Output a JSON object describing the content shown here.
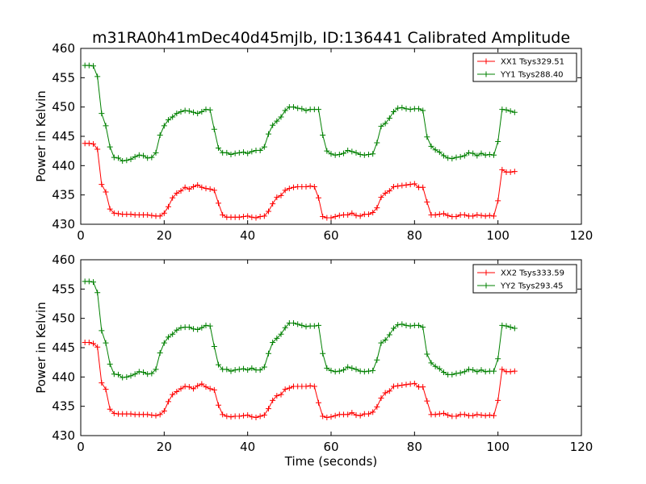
{
  "figure": {
    "title": "m31RA0h41mDec40d45mjlb, ID:136441 Calibrated Amplitude"
  },
  "chart_data": [
    {
      "type": "line",
      "title": "m31RA0h41mDec40d45mjlb, ID:136441 Calibrated Amplitude",
      "xlabel": "",
      "ylabel": "Power in Kelvin",
      "xlim": [
        0,
        120
      ],
      "ylim": [
        430,
        460
      ],
      "xticks": [
        0,
        20,
        40,
        60,
        80,
        100,
        120
      ],
      "yticks": [
        430,
        435,
        440,
        445,
        450,
        455,
        460
      ],
      "grid": false,
      "legend_position": "top-right",
      "marker": "+",
      "series": [
        {
          "name": "XX1 Tsys329.51",
          "color": "#ff0000",
          "x": [
            1,
            2,
            3,
            4,
            5,
            6,
            7,
            8,
            9,
            10,
            11,
            12,
            13,
            14,
            15,
            16,
            17,
            18,
            19,
            20,
            21,
            22,
            23,
            24,
            25,
            26,
            27,
            28,
            29,
            30,
            31,
            32,
            33,
            34,
            35,
            36,
            37,
            38,
            39,
            40,
            41,
            42,
            43,
            44,
            45,
            46,
            47,
            48,
            49,
            50,
            51,
            52,
            53,
            54,
            55,
            56,
            57,
            58,
            59,
            60,
            61,
            62,
            63,
            64,
            65,
            66,
            67,
            68,
            69,
            70,
            71,
            72,
            73,
            74,
            75,
            76,
            77,
            78,
            79,
            80,
            81,
            82,
            83,
            84,
            85,
            86,
            87,
            88,
            89,
            90,
            91,
            92,
            93,
            94,
            95,
            96,
            97,
            98,
            99,
            100,
            101,
            102,
            103,
            104
          ],
          "y": [
            443.8,
            443.8,
            443.7,
            442.8,
            436.8,
            435.5,
            432.6,
            431.9,
            431.8,
            431.7,
            431.7,
            431.7,
            431.6,
            431.6,
            431.6,
            431.6,
            431.5,
            431.4,
            431.4,
            431.9,
            433.0,
            434.5,
            435.3,
            435.7,
            436.3,
            436.0,
            436.4,
            436.7,
            436.3,
            436.1,
            436.0,
            435.8,
            433.6,
            431.6,
            431.2,
            431.2,
            431.2,
            431.2,
            431.3,
            431.4,
            431.2,
            431.1,
            431.3,
            431.4,
            432.2,
            433.5,
            434.6,
            434.9,
            435.8,
            436.1,
            436.3,
            436.4,
            436.4,
            436.4,
            436.5,
            436.4,
            434.5,
            431.3,
            431.1,
            431.1,
            431.3,
            431.5,
            431.6,
            431.6,
            431.9,
            431.5,
            431.4,
            431.7,
            431.7,
            432.0,
            432.8,
            434.6,
            435.3,
            435.7,
            436.4,
            436.5,
            436.6,
            436.7,
            436.8,
            436.9,
            436.3,
            436.3,
            433.8,
            431.6,
            431.6,
            431.7,
            431.8,
            431.5,
            431.3,
            431.3,
            431.6,
            431.6,
            431.4,
            431.4,
            431.6,
            431.5,
            431.4,
            431.5,
            431.4,
            434.0,
            439.3,
            438.9,
            438.9,
            439.0
          ]
        },
        {
          "name": "YY1 Tsys288.40",
          "color": "#008000",
          "x": [
            1,
            2,
            3,
            4,
            5,
            6,
            7,
            8,
            9,
            10,
            11,
            12,
            13,
            14,
            15,
            16,
            17,
            18,
            19,
            20,
            21,
            22,
            23,
            24,
            25,
            26,
            27,
            28,
            29,
            30,
            31,
            32,
            33,
            34,
            35,
            36,
            37,
            38,
            39,
            40,
            41,
            42,
            43,
            44,
            45,
            46,
            47,
            48,
            49,
            50,
            51,
            52,
            53,
            54,
            55,
            56,
            57,
            58,
            59,
            60,
            61,
            62,
            63,
            64,
            65,
            66,
            67,
            68,
            69,
            70,
            71,
            72,
            73,
            74,
            75,
            76,
            77,
            78,
            79,
            80,
            81,
            82,
            83,
            84,
            85,
            86,
            87,
            88,
            89,
            90,
            91,
            92,
            93,
            94,
            95,
            96,
            97,
            98,
            99,
            100,
            101,
            102,
            103,
            104
          ],
          "y": [
            457.1,
            457.1,
            457.0,
            455.2,
            448.9,
            446.8,
            443.2,
            441.4,
            441.3,
            440.8,
            440.9,
            441.1,
            441.5,
            441.8,
            441.7,
            441.3,
            441.4,
            442.2,
            445.2,
            446.8,
            447.8,
            448.3,
            448.9,
            449.2,
            449.4,
            449.3,
            449.1,
            448.9,
            449.2,
            449.6,
            449.5,
            446.2,
            443.0,
            442.2,
            442.2,
            441.9,
            442.1,
            442.2,
            442.3,
            442.1,
            442.4,
            442.6,
            442.6,
            443.2,
            445.4,
            446.9,
            447.6,
            448.3,
            449.4,
            450.0,
            450.0,
            449.8,
            449.7,
            449.4,
            449.6,
            449.6,
            449.6,
            445.2,
            442.5,
            442.0,
            441.8,
            441.9,
            442.1,
            442.6,
            442.4,
            442.2,
            441.9,
            441.8,
            441.9,
            442.0,
            443.9,
            446.7,
            447.2,
            448.1,
            449.2,
            449.8,
            449.9,
            449.7,
            449.6,
            449.7,
            449.7,
            449.4,
            444.9,
            443.3,
            442.7,
            442.3,
            441.7,
            441.3,
            441.2,
            441.4,
            441.5,
            441.7,
            442.2,
            442.1,
            441.7,
            442.1,
            441.8,
            441.9,
            441.8,
            444.1,
            449.6,
            449.5,
            449.3,
            449.1
          ]
        }
      ]
    },
    {
      "type": "line",
      "title": "",
      "xlabel": "Time (seconds)",
      "ylabel": "Power in Kelvin",
      "xlim": [
        0,
        120
      ],
      "ylim": [
        430,
        460
      ],
      "xticks": [
        0,
        20,
        40,
        60,
        80,
        100,
        120
      ],
      "yticks": [
        430,
        435,
        440,
        445,
        450,
        455,
        460
      ],
      "grid": false,
      "legend_position": "top-right",
      "marker": "+",
      "series": [
        {
          "name": "XX2 Tsys333.59",
          "color": "#ff0000",
          "x": [
            1,
            2,
            3,
            4,
            5,
            6,
            7,
            8,
            9,
            10,
            11,
            12,
            13,
            14,
            15,
            16,
            17,
            18,
            19,
            20,
            21,
            22,
            23,
            24,
            25,
            26,
            27,
            28,
            29,
            30,
            31,
            32,
            33,
            34,
            35,
            36,
            37,
            38,
            39,
            40,
            41,
            42,
            43,
            44,
            45,
            46,
            47,
            48,
            49,
            50,
            51,
            52,
            53,
            54,
            55,
            56,
            57,
            58,
            59,
            60,
            61,
            62,
            63,
            64,
            65,
            66,
            67,
            68,
            69,
            70,
            71,
            72,
            73,
            74,
            75,
            76,
            77,
            78,
            79,
            80,
            81,
            82,
            83,
            84,
            85,
            86,
            87,
            88,
            89,
            90,
            91,
            92,
            93,
            94,
            95,
            96,
            97,
            98,
            99,
            100,
            101,
            102,
            103,
            104
          ],
          "y": [
            445.9,
            445.9,
            445.7,
            445.1,
            439.0,
            437.9,
            434.5,
            433.8,
            433.7,
            433.7,
            433.7,
            433.7,
            433.6,
            433.6,
            433.6,
            433.6,
            433.5,
            433.4,
            433.6,
            434.2,
            435.8,
            437.0,
            437.5,
            438.0,
            438.4,
            438.3,
            438.0,
            438.5,
            438.8,
            438.3,
            438.0,
            437.8,
            435.2,
            433.6,
            433.3,
            433.2,
            433.3,
            433.3,
            433.4,
            433.5,
            433.2,
            433.1,
            433.3,
            433.5,
            434.6,
            436.0,
            436.8,
            437.0,
            437.9,
            438.1,
            438.4,
            438.4,
            438.4,
            438.4,
            438.5,
            438.4,
            435.6,
            433.3,
            433.1,
            433.2,
            433.4,
            433.6,
            433.6,
            433.6,
            433.9,
            433.5,
            433.4,
            433.7,
            433.7,
            434.0,
            434.9,
            436.4,
            437.3,
            437.6,
            438.4,
            438.5,
            438.6,
            438.7,
            438.8,
            438.9,
            438.3,
            438.3,
            435.9,
            433.6,
            433.6,
            433.7,
            433.8,
            433.5,
            433.3,
            433.3,
            433.6,
            433.6,
            433.4,
            433.4,
            433.6,
            433.5,
            433.4,
            433.5,
            433.4,
            436.0,
            441.3,
            440.9,
            440.9,
            441.0
          ]
        },
        {
          "name": "YY2 Tsys293.45",
          "color": "#008000",
          "x": [
            1,
            2,
            3,
            4,
            5,
            6,
            7,
            8,
            9,
            10,
            11,
            12,
            13,
            14,
            15,
            16,
            17,
            18,
            19,
            20,
            21,
            22,
            23,
            24,
            25,
            26,
            27,
            28,
            29,
            30,
            31,
            32,
            33,
            34,
            35,
            36,
            37,
            38,
            39,
            40,
            41,
            42,
            43,
            44,
            45,
            46,
            47,
            48,
            49,
            50,
            51,
            52,
            53,
            54,
            55,
            56,
            57,
            58,
            59,
            60,
            61,
            62,
            63,
            64,
            65,
            66,
            67,
            68,
            69,
            70,
            71,
            72,
            73,
            74,
            75,
            76,
            77,
            78,
            79,
            80,
            81,
            82,
            83,
            84,
            85,
            86,
            87,
            88,
            89,
            90,
            91,
            92,
            93,
            94,
            95,
            96,
            97,
            98,
            99,
            100,
            101,
            102,
            103,
            104
          ],
          "y": [
            456.3,
            456.3,
            456.2,
            454.4,
            447.9,
            445.8,
            442.2,
            440.5,
            440.4,
            439.9,
            440.0,
            440.2,
            440.5,
            440.9,
            440.8,
            440.5,
            440.6,
            441.3,
            444.1,
            445.8,
            446.8,
            447.3,
            448.0,
            448.4,
            448.5,
            448.5,
            448.2,
            448.1,
            448.4,
            448.8,
            448.7,
            445.2,
            442.1,
            441.3,
            441.3,
            441.0,
            441.2,
            441.3,
            441.4,
            441.2,
            441.5,
            441.2,
            441.2,
            441.7,
            444.0,
            445.9,
            446.6,
            447.3,
            448.4,
            449.2,
            449.2,
            449.0,
            448.8,
            448.6,
            448.7,
            448.7,
            448.8,
            444.0,
            441.5,
            441.1,
            440.9,
            441.0,
            441.2,
            441.7,
            441.5,
            441.3,
            441.0,
            440.9,
            441.0,
            441.1,
            442.9,
            445.8,
            446.3,
            447.2,
            448.3,
            448.9,
            449.0,
            448.8,
            448.7,
            448.8,
            448.8,
            448.5,
            443.9,
            442.4,
            441.8,
            441.4,
            440.8,
            440.4,
            440.4,
            440.6,
            440.7,
            440.9,
            441.3,
            441.2,
            440.9,
            441.2,
            440.9,
            441.0,
            441.0,
            443.1,
            448.8,
            448.7,
            448.5,
            448.3
          ]
        }
      ]
    }
  ]
}
